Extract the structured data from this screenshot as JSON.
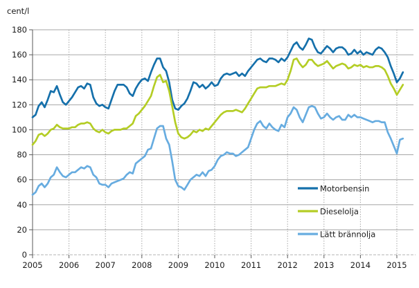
{
  "page": {
    "title": "Fuel price line chart"
  },
  "chart_data": {
    "type": "line",
    "title": "",
    "unit_label": "cent/l",
    "xlabel": "",
    "ylabel": "cent/l",
    "ylim": [
      0,
      180
    ],
    "y_ticks": [
      0,
      20,
      40,
      60,
      80,
      100,
      120,
      140,
      160,
      180
    ],
    "x_tick_labels": [
      "2005",
      "2006",
      "2007",
      "2008",
      "2009",
      "2010",
      "2011",
      "2012",
      "2013",
      "2014",
      "2015"
    ],
    "x_range_note": "monthly data, January 2005 - March 2015",
    "grid": {
      "horizontal": "solid",
      "vertical": "dotted"
    },
    "legend_position": "inside-right",
    "colors": {
      "grid": "#a6a6a6",
      "axis": "#595959",
      "baseline_dashed": "#b3b3b3",
      "text": "#1a1a1a"
    },
    "series": [
      {
        "name": "Motorbensin",
        "color": "#1570ab",
        "values": [
          110,
          112,
          119,
          122,
          118,
          124,
          131,
          130,
          135,
          128,
          122,
          120,
          123,
          126,
          130,
          134,
          135,
          133,
          137,
          136,
          126,
          121,
          119,
          120,
          118,
          117,
          124,
          131,
          136,
          136,
          136,
          134,
          129,
          127,
          133,
          137,
          140,
          141,
          139,
          146,
          152,
          157,
          157,
          150,
          147,
          138,
          124,
          117,
          116,
          119,
          121,
          125,
          131,
          138,
          137,
          134,
          136,
          133,
          135,
          138,
          135,
          136,
          141,
          144,
          145,
          144,
          145,
          146,
          143,
          145,
          143,
          147,
          150,
          153,
          156,
          157,
          155,
          154,
          157,
          157,
          156,
          154,
          157,
          155,
          158,
          163,
          168,
          170,
          166,
          164,
          168,
          173,
          172,
          166,
          162,
          161,
          164,
          167,
          165,
          162,
          165,
          166,
          166,
          164,
          160,
          161,
          164,
          161,
          163,
          160,
          162,
          161,
          160,
          164,
          166,
          165,
          162,
          158,
          151,
          145,
          138,
          141,
          146
        ]
      },
      {
        "name": "Dieselolja",
        "color": "#b4cd25",
        "values": [
          88,
          91,
          96,
          97,
          95,
          97,
          100,
          101,
          104,
          102,
          101,
          101,
          101,
          102,
          102,
          104,
          105,
          105,
          106,
          105,
          101,
          99,
          98,
          100,
          98,
          97,
          99,
          100,
          100,
          100,
          101,
          101,
          103,
          105,
          111,
          113,
          116,
          119,
          123,
          127,
          135,
          142,
          144,
          138,
          139,
          131,
          119,
          106,
          97,
          94,
          93,
          94,
          96,
          99,
          98,
          100,
          99,
          101,
          100,
          103,
          106,
          109,
          112,
          114,
          115,
          115,
          115,
          116,
          115,
          114,
          117,
          121,
          125,
          129,
          133,
          134,
          134,
          134,
          135,
          135,
          135,
          136,
          137,
          136,
          140,
          147,
          156,
          157,
          153,
          150,
          152,
          156,
          156,
          153,
          151,
          152,
          153,
          155,
          152,
          149,
          151,
          152,
          153,
          152,
          149,
          150,
          152,
          151,
          152,
          150,
          151,
          150,
          150,
          151,
          151,
          150,
          148,
          143,
          137,
          133,
          128,
          132,
          136
        ]
      },
      {
        "name": "Lätt brännolja",
        "color": "#67ace0",
        "values": [
          48,
          50,
          55,
          57,
          54,
          57,
          62,
          64,
          70,
          66,
          63,
          62,
          64,
          66,
          66,
          68,
          70,
          69,
          71,
          70,
          64,
          62,
          57,
          56,
          56,
          54,
          57,
          58,
          59,
          60,
          61,
          64,
          66,
          65,
          73,
          75,
          77,
          79,
          84,
          85,
          93,
          101,
          103,
          103,
          93,
          88,
          75,
          60,
          55,
          54,
          52,
          56,
          60,
          62,
          64,
          63,
          66,
          63,
          67,
          68,
          71,
          76,
          79,
          80,
          82,
          81,
          81,
          79,
          80,
          82,
          84,
          86,
          93,
          100,
          105,
          107,
          103,
          101,
          105,
          102,
          100,
          99,
          104,
          102,
          110,
          113,
          118,
          116,
          110,
          106,
          112,
          118,
          119,
          118,
          113,
          109,
          110,
          113,
          110,
          108,
          110,
          111,
          108,
          108,
          112,
          110,
          112,
          110,
          110,
          109,
          108,
          107,
          106,
          107,
          107,
          106,
          106,
          98,
          93,
          87,
          81,
          92,
          93
        ]
      }
    ]
  }
}
